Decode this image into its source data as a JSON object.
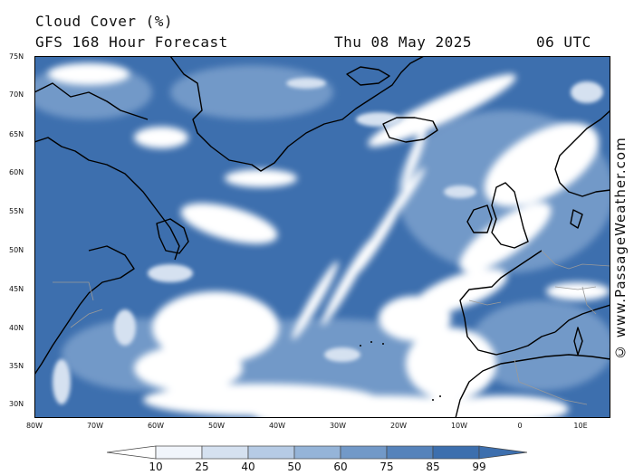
{
  "header": {
    "title": "Cloud Cover (%)",
    "subtitle": "GFS 168 Hour Forecast",
    "date": "Thu 08 May 2025",
    "time": "06 UTC"
  },
  "axes": {
    "lat_labels": [
      "75N",
      "70N",
      "65N",
      "60N",
      "55N",
      "50N",
      "45N",
      "40N",
      "35N",
      "30N"
    ],
    "lon_labels": [
      "80W",
      "70W",
      "60W",
      "50W",
      "40W",
      "30W",
      "20W",
      "10W",
      "0",
      "10E"
    ]
  },
  "legend": {
    "levels": [
      "10",
      "25",
      "40",
      "50",
      "60",
      "75",
      "85",
      "99"
    ],
    "colors": [
      "#ffffff",
      "#f1f5fb",
      "#d5e1f0",
      "#b6cbe5",
      "#95b4d8",
      "#7299c8",
      "#5683bb",
      "#3d6fae"
    ]
  },
  "watermark": "© www.PassageWeather.com",
  "colors": {
    "cloud_dense": "#3d6fae",
    "cloud_clear": "#ffffff",
    "coastline": "#000000",
    "border": "#9a9a9a"
  }
}
